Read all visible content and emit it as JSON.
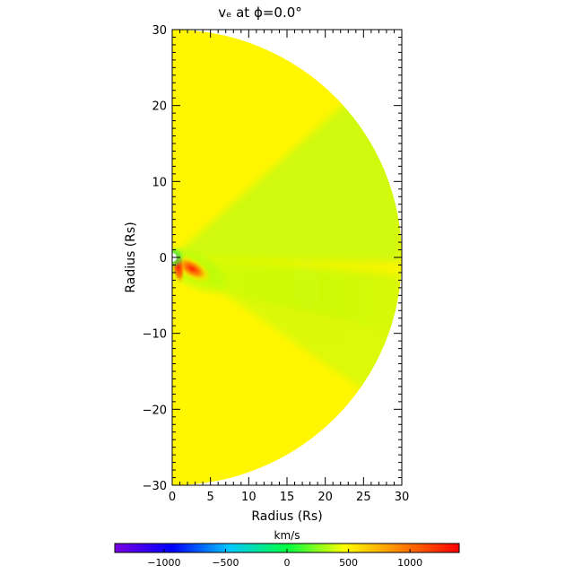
{
  "chart_data": {
    "type": "heatmap",
    "title": "vₑ at ϕ=0.0°",
    "xlabel": "Radius (Rs)",
    "ylabel": "Radius (Rs)",
    "xlim": [
      0,
      30
    ],
    "ylim": [
      -30,
      30
    ],
    "x_ticks": [
      0,
      5,
      10,
      15,
      20,
      25,
      30
    ],
    "y_ticks": [
      -30,
      -20,
      -10,
      0,
      10,
      20,
      30
    ],
    "domain": "half-disk, radius 30 Rs, right half-plane",
    "colorbar": {
      "label": "km/s",
      "range": [
        -1400,
        1400
      ],
      "ticks": [
        -1000,
        -500,
        0,
        500,
        1000
      ],
      "colormap": [
        "#7a00e0",
        "#0000ff",
        "#00c8ff",
        "#00ff40",
        "#ffff00",
        "#ff8000",
        "#ff0000"
      ]
    },
    "background_value": 500,
    "features": [
      {
        "kind": "max-lobe",
        "r": 3,
        "angle_deg": -30,
        "value": 1300
      },
      {
        "kind": "bright-limb",
        "r": 1.3,
        "angle_deg": -60,
        "value": 1350
      },
      {
        "kind": "streamer-band",
        "angle_deg": -10,
        "value": 700
      }
    ]
  }
}
